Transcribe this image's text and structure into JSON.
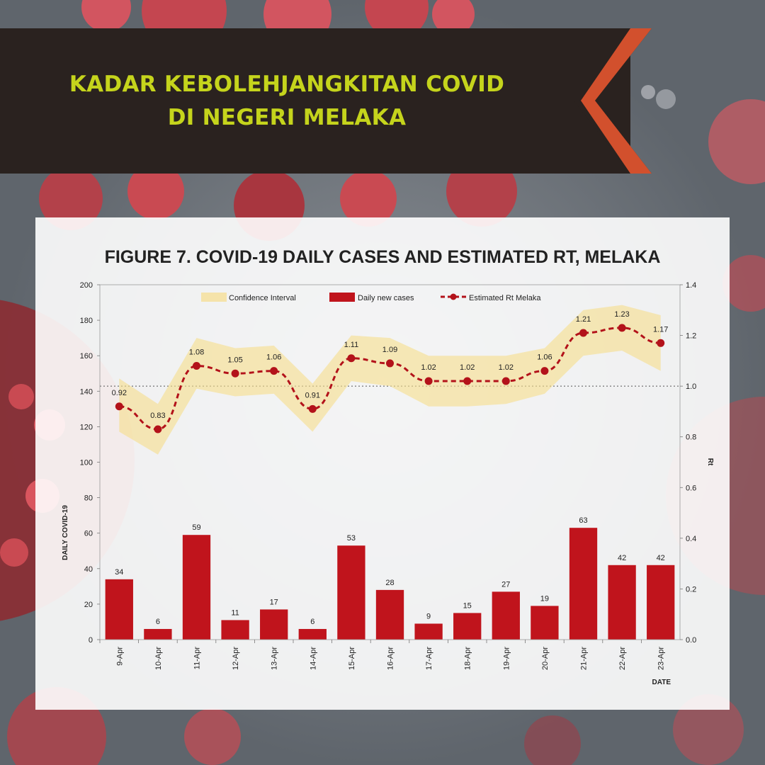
{
  "banner": {
    "title_line1": "KADAR KEBOLEHJANGKITAN COVID",
    "title_line2": "DI NEGERI MELAKA"
  },
  "colors": {
    "banner_bg": "#2a221f",
    "banner_text": "#c5d41c",
    "chevron": "#d2502d",
    "bar": "#c0141c",
    "rt_line": "#b3121a",
    "confidence_band": "#f6dd8a"
  },
  "chart_data": {
    "type": "bar",
    "title": "FIGURE 7. COVID-19 DAILY CASES AND ESTIMATED RT, MELAKA",
    "xlabel": "DATE",
    "ylabel": "DAILY COVID-19",
    "y2label": "Rt",
    "categories": [
      "9-Apr",
      "10-Apr",
      "11-Apr",
      "12-Apr",
      "13-Apr",
      "14-Apr",
      "15-Apr",
      "16-Apr",
      "17-Apr",
      "18-Apr",
      "19-Apr",
      "20-Apr",
      "21-Apr",
      "22-Apr",
      "23-Apr"
    ],
    "ylim": [
      0,
      200
    ],
    "yticks": [
      "0",
      "20",
      "40",
      "60",
      "80",
      "100",
      "120",
      "140",
      "160",
      "180",
      "200"
    ],
    "y2lim": [
      0,
      1.4
    ],
    "y2ticks": [
      "0.0",
      "0.2",
      "0.4",
      "0.6",
      "0.8",
      "1.0",
      "1.2",
      "1.4"
    ],
    "reference_line_rt": 1.0,
    "legend_position": "top",
    "series": [
      {
        "name": "Daily new cases",
        "type": "bar",
        "axis": "left",
        "values": [
          34,
          6,
          59,
          11,
          17,
          6,
          53,
          28,
          9,
          15,
          27,
          19,
          63,
          42,
          42
        ],
        "labels": [
          "34",
          "6",
          "59",
          "11",
          "17",
          "6",
          "53",
          "28",
          "9",
          "15",
          "27",
          "19",
          "63",
          "42",
          "42"
        ]
      },
      {
        "name": "Estimated Rt Melaka",
        "type": "line",
        "axis": "right",
        "values": [
          0.92,
          0.83,
          1.08,
          1.05,
          1.06,
          0.91,
          1.11,
          1.09,
          1.02,
          1.02,
          1.02,
          1.06,
          1.21,
          1.23,
          1.17
        ],
        "labels": [
          "0.92",
          "0.83",
          "1.08",
          "1.05",
          "1.06",
          "0.91",
          "1.11",
          "1.09",
          "1.02",
          "1.02",
          "1.02",
          "1.06",
          "1.21",
          "1.23",
          "1.17"
        ]
      },
      {
        "name": "Confidence Interval",
        "type": "area",
        "axis": "right",
        "lower": [
          0.82,
          0.73,
          0.99,
          0.96,
          0.97,
          0.82,
          1.02,
          1.0,
          0.92,
          0.92,
          0.93,
          0.97,
          1.12,
          1.14,
          1.06
        ],
        "upper": [
          1.03,
          0.93,
          1.19,
          1.15,
          1.16,
          1.01,
          1.2,
          1.19,
          1.12,
          1.12,
          1.12,
          1.15,
          1.3,
          1.32,
          1.28
        ]
      }
    ]
  }
}
